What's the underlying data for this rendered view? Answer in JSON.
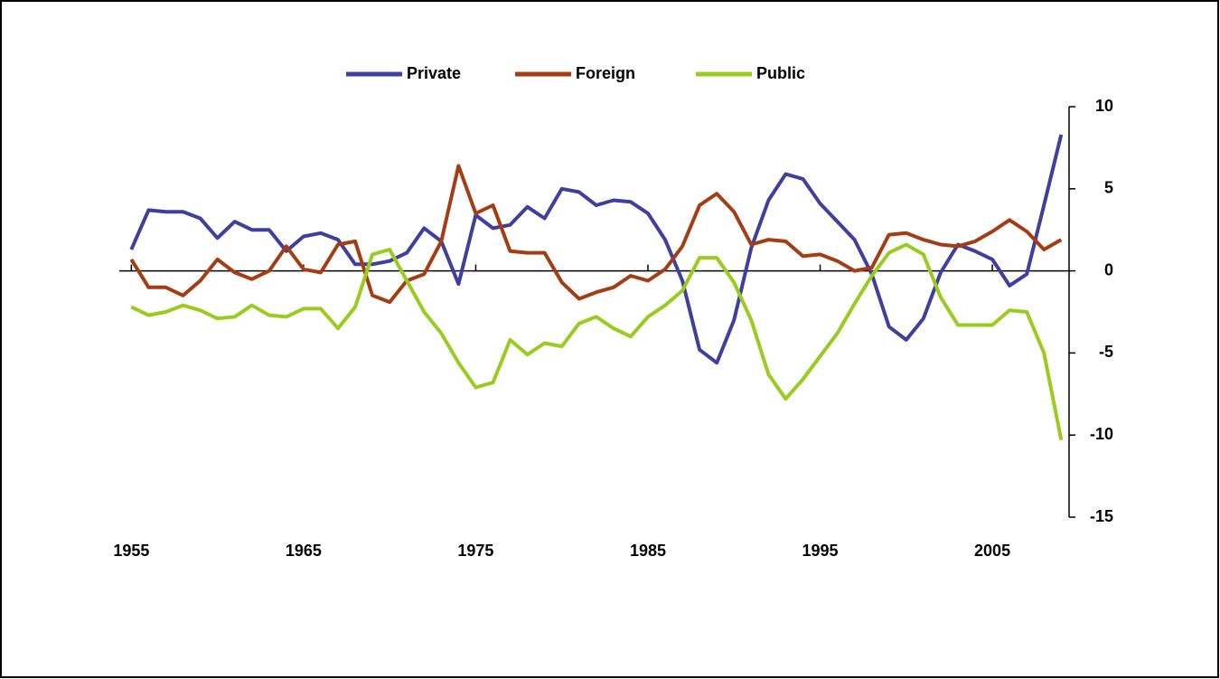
{
  "chart_data": {
    "type": "line",
    "x": [
      1955,
      1956,
      1957,
      1958,
      1959,
      1960,
      1961,
      1962,
      1963,
      1964,
      1965,
      1966,
      1967,
      1968,
      1969,
      1970,
      1971,
      1972,
      1973,
      1974,
      1975,
      1976,
      1977,
      1978,
      1979,
      1980,
      1981,
      1982,
      1983,
      1984,
      1985,
      1986,
      1987,
      1988,
      1989,
      1990,
      1991,
      1992,
      1993,
      1994,
      1995,
      1996,
      1997,
      1998,
      1999,
      2000,
      2001,
      2002,
      2003,
      2004,
      2005,
      2006,
      2007,
      2008,
      2009
    ],
    "series": [
      {
        "name": "Private",
        "color": "#3f3f9f",
        "values": [
          1.3,
          3.7,
          3.6,
          3.6,
          3.2,
          2.0,
          3.0,
          2.5,
          2.5,
          1.2,
          2.1,
          2.3,
          1.9,
          0.4,
          0.4,
          0.6,
          1.1,
          2.6,
          1.8,
          -0.8,
          3.4,
          2.6,
          2.8,
          3.9,
          3.2,
          5.0,
          4.8,
          4.0,
          4.3,
          4.2,
          3.5,
          1.9,
          -0.6,
          -4.8,
          -5.6,
          -3.0,
          1.4,
          4.3,
          5.9,
          5.6,
          4.1,
          3.0,
          1.9,
          -0.2,
          -3.4,
          -4.2,
          -2.9,
          -0.1,
          1.6,
          1.2,
          0.7,
          -0.9,
          -0.2,
          4.0,
          8.3
        ]
      },
      {
        "name": "Foreign",
        "color": "#a43d14",
        "values": [
          0.7,
          -1.0,
          -1.0,
          -1.5,
          -0.6,
          0.7,
          -0.1,
          -0.5,
          0.0,
          1.5,
          0.1,
          -0.1,
          1.6,
          1.8,
          -1.5,
          -1.9,
          -0.6,
          -0.2,
          1.8,
          6.4,
          3.5,
          4.0,
          1.2,
          1.1,
          1.1,
          -0.7,
          -1.7,
          -1.3,
          -1.0,
          -0.3,
          -0.6,
          0.1,
          1.5,
          4.0,
          4.7,
          3.6,
          1.6,
          1.9,
          1.8,
          0.9,
          1.0,
          0.6,
          0.0,
          0.2,
          2.2,
          2.3,
          1.9,
          1.6,
          1.5,
          1.8,
          2.4,
          3.1,
          2.4,
          1.3,
          1.9
        ]
      },
      {
        "name": "Public",
        "color": "#99cc1f",
        "values": [
          -2.2,
          -2.7,
          -2.5,
          -2.1,
          -2.4,
          -2.9,
          -2.8,
          -2.1,
          -2.7,
          -2.8,
          -2.3,
          -2.3,
          -3.5,
          -2.2,
          1.0,
          1.3,
          -0.6,
          -2.5,
          -3.8,
          -5.6,
          -7.1,
          -6.8,
          -4.2,
          -5.1,
          -4.4,
          -4.6,
          -3.2,
          -2.8,
          -3.5,
          -4.0,
          -2.8,
          -2.1,
          -1.2,
          0.8,
          0.8,
          -0.7,
          -3.0,
          -6.3,
          -7.8,
          -6.6,
          -5.2,
          -3.8,
          -2.0,
          -0.3,
          1.1,
          1.6,
          1.0,
          -1.6,
          -3.3,
          -3.3,
          -3.3,
          -2.4,
          -2.5,
          -5.0,
          -10.3
        ]
      }
    ],
    "xlim": [
      1954.3,
      2009.3
    ],
    "xticks": [
      1955,
      1965,
      1975,
      1985,
      1995,
      2005
    ],
    "ylim": [
      -15,
      10
    ],
    "yticks": [
      -15,
      -10,
      -5,
      0,
      5,
      10
    ],
    "legend": "top"
  }
}
